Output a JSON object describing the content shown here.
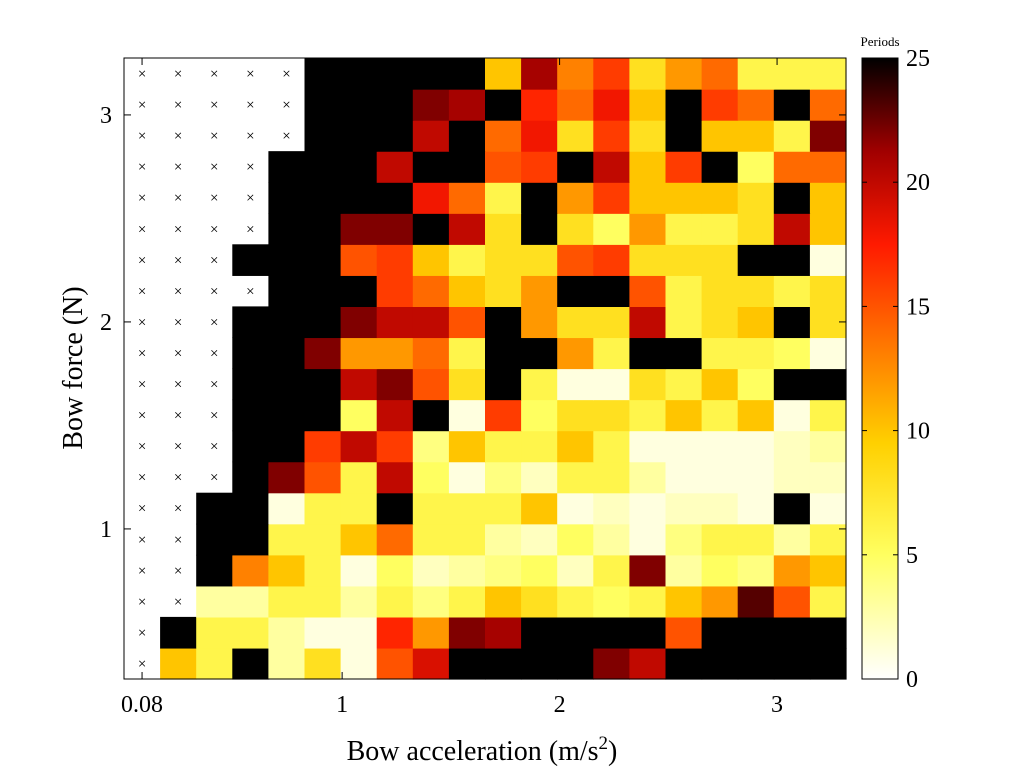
{
  "chart_data": {
    "type": "heatmap",
    "xlabel": "Bow acceleration (m/s",
    "xlabel_sup": "2",
    "xlabel_close": ")",
    "ylabel": "Bow force (N)",
    "xticks": [
      {
        "value": 0.08,
        "label": "0.08"
      },
      {
        "value": 1,
        "label": "1"
      },
      {
        "value": 2,
        "label": "2"
      },
      {
        "value": 3,
        "label": "3"
      }
    ],
    "yticks": [
      {
        "value": 1,
        "label": "1"
      },
      {
        "value": 2,
        "label": "2"
      },
      {
        "value": 3,
        "label": "3"
      }
    ],
    "x_centers": [
      0.08,
      0.246,
      0.412,
      0.578,
      0.744,
      0.91,
      1.076,
      1.242,
      1.408,
      1.574,
      1.74,
      1.906,
      2.072,
      2.238,
      2.404,
      2.57,
      2.736,
      2.902,
      3.068,
      3.234
    ],
    "y_centers": [
      0.35,
      0.5,
      0.65,
      0.8,
      0.95,
      1.1,
      1.25,
      1.4,
      1.55,
      1.7,
      1.85,
      2.0,
      2.15,
      2.3,
      2.45,
      2.6,
      2.75,
      2.9,
      3.05,
      3.2
    ],
    "no_data_marker": "×",
    "values": [
      [
        null,
        10,
        6,
        25,
        3,
        8,
        1,
        15,
        19,
        25,
        25,
        25,
        25,
        22,
        20,
        25,
        25,
        25,
        25,
        25
      ],
      [
        null,
        25,
        6,
        6,
        3,
        1,
        1,
        17,
        12,
        22,
        21,
        25,
        25,
        25,
        25,
        15,
        25,
        25,
        25,
        25
      ],
      [
        null,
        null,
        3,
        3,
        6,
        6,
        3,
        6,
        4,
        6,
        10,
        8,
        6,
        5,
        6,
        10,
        12,
        23,
        15,
        6
      ],
      [
        null,
        null,
        25,
        13,
        10,
        6,
        1,
        5,
        2,
        3,
        4,
        5,
        2,
        6,
        22,
        3,
        5,
        4,
        12,
        10
      ],
      [
        null,
        null,
        25,
        25,
        6,
        6,
        10,
        14,
        6,
        6,
        3,
        2,
        5,
        3,
        1,
        4,
        6,
        6,
        3,
        6
      ],
      [
        null,
        null,
        25,
        25,
        1,
        6,
        6,
        25,
        6,
        6,
        6,
        10,
        1,
        2,
        1,
        2,
        2,
        1,
        25,
        1
      ],
      [
        null,
        null,
        null,
        25,
        22,
        15,
        6,
        20,
        5,
        1,
        4,
        2,
        6,
        6,
        3,
        1,
        1,
        1,
        2,
        2
      ],
      [
        null,
        null,
        null,
        25,
        25,
        16,
        20,
        16,
        4,
        10,
        6,
        6,
        10,
        6,
        1,
        1,
        1,
        1,
        2,
        3
      ],
      [
        null,
        null,
        null,
        25,
        25,
        25,
        5,
        20,
        25,
        1,
        16,
        5,
        8,
        8,
        6,
        10,
        6,
        10,
        1,
        6
      ],
      [
        null,
        null,
        null,
        25,
        25,
        25,
        20,
        22,
        15,
        8,
        25,
        6,
        1,
        1,
        8,
        6,
        10,
        5,
        25,
        25
      ],
      [
        null,
        null,
        null,
        25,
        25,
        22,
        12,
        12,
        14,
        6,
        25,
        25,
        12,
        6,
        25,
        25,
        6,
        6,
        5,
        1
      ],
      [
        null,
        null,
        null,
        25,
        25,
        25,
        22,
        20,
        20,
        15,
        25,
        12,
        8,
        8,
        20,
        6,
        8,
        10,
        25,
        8
      ],
      [
        null,
        null,
        null,
        null,
        25,
        25,
        25,
        16,
        14,
        10,
        8,
        12,
        25,
        25,
        15,
        6,
        8,
        8,
        6,
        8
      ],
      [
        null,
        null,
        null,
        25,
        25,
        25,
        15,
        16,
        10,
        6,
        8,
        8,
        15,
        16,
        8,
        8,
        8,
        25,
        25,
        1
      ],
      [
        null,
        null,
        null,
        null,
        25,
        25,
        22,
        22,
        25,
        20,
        8,
        25,
        8,
        5,
        12,
        6,
        6,
        8,
        20,
        10
      ],
      [
        null,
        null,
        null,
        null,
        25,
        25,
        25,
        25,
        18,
        14,
        6,
        25,
        12,
        16,
        10,
        10,
        10,
        8,
        25,
        10
      ],
      [
        null,
        null,
        null,
        null,
        25,
        25,
        25,
        20,
        25,
        25,
        15,
        16,
        25,
        20,
        10,
        16,
        25,
        5,
        14,
        14
      ],
      [
        null,
        null,
        null,
        null,
        null,
        25,
        25,
        25,
        20,
        25,
        14,
        18,
        8,
        16,
        8,
        25,
        10,
        10,
        6,
        22
      ],
      [
        null,
        null,
        null,
        null,
        null,
        25,
        25,
        25,
        22,
        21,
        25,
        17,
        14,
        18,
        10,
        25,
        16,
        14,
        25,
        14
      ],
      [
        null,
        null,
        null,
        null,
        null,
        25,
        25,
        25,
        25,
        25,
        10,
        21,
        13,
        16,
        8,
        12,
        14,
        6,
        6,
        6
      ]
    ],
    "colorbar": {
      "title": "Periods",
      "min": 0,
      "max": 25,
      "ticks": [
        0,
        5,
        10,
        15,
        20,
        25
      ],
      "colormap": "hot (reversed)"
    },
    "colors": {
      "nan": "#ffffff",
      "marker": "#333333"
    }
  }
}
